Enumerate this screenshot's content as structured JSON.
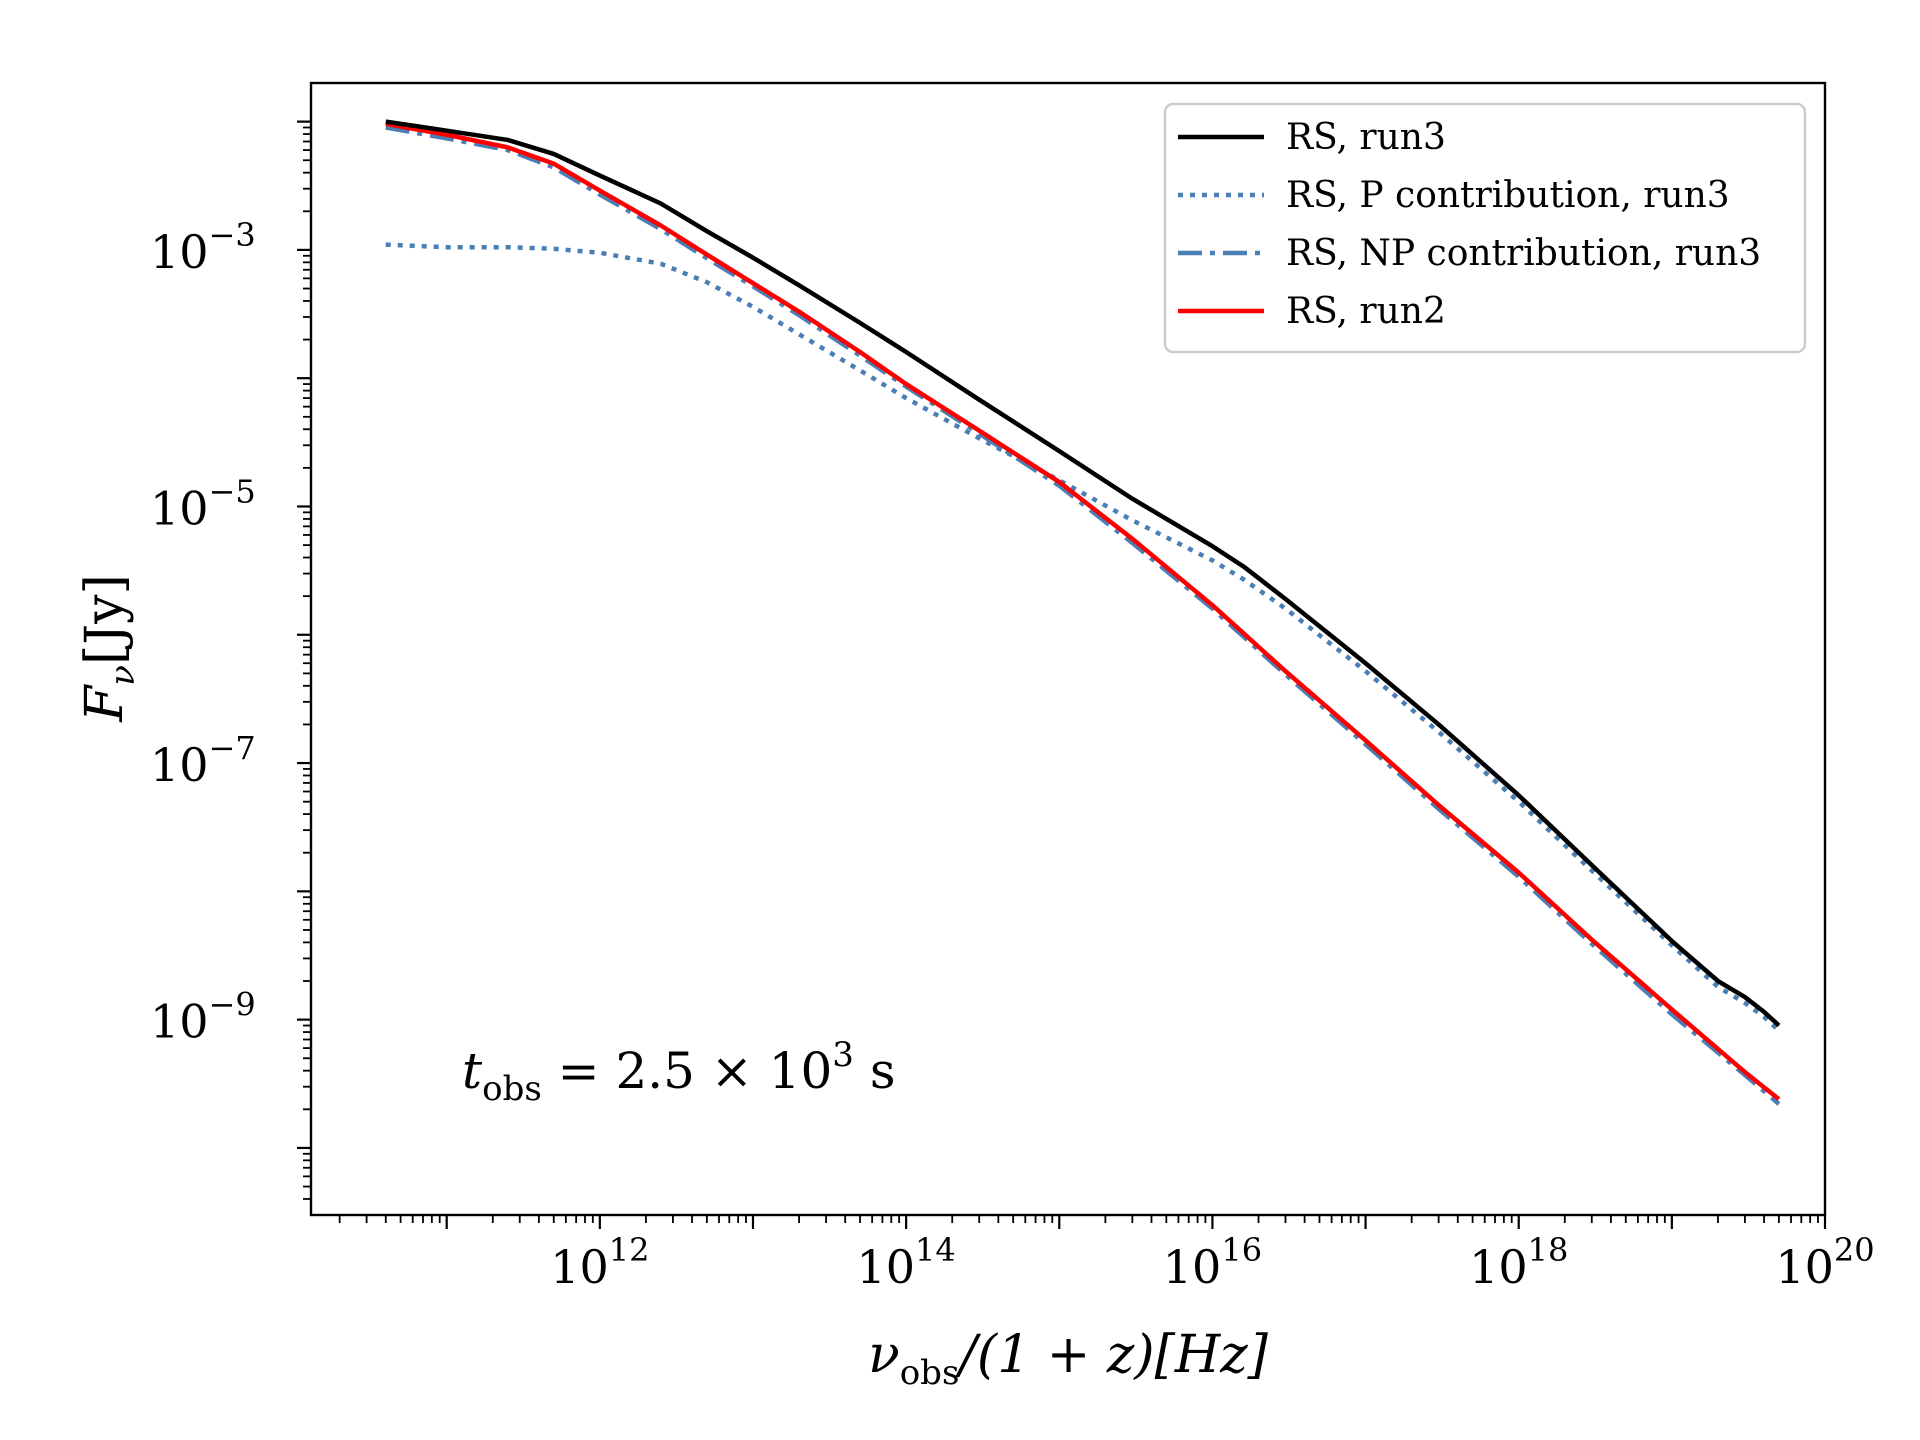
{
  "chart_data": {
    "type": "line",
    "xscale": "log",
    "yscale": "log",
    "xlim": [
      13000000000.0,
      1e+20
    ],
    "ylim": [
      3e-11,
      0.02
    ],
    "xticks": [
      {
        "value": 1000000000000.0,
        "base": "10",
        "exp": "12"
      },
      {
        "value": 100000000000000.0,
        "base": "10",
        "exp": "14"
      },
      {
        "value": 1e+16,
        "base": "10",
        "exp": "16"
      },
      {
        "value": 1e+18,
        "base": "10",
        "exp": "18"
      },
      {
        "value": 1e+20,
        "base": "10",
        "exp": "20"
      }
    ],
    "yticks": [
      {
        "value": 0.001,
        "base": "10",
        "exp": "−3"
      },
      {
        "value": 1e-05,
        "base": "10",
        "exp": "−5"
      },
      {
        "value": 1e-07,
        "base": "10",
        "exp": "−7"
      },
      {
        "value": 1e-09,
        "base": "10",
        "exp": "−9"
      }
    ],
    "xlabel": {
      "nu": "ν",
      "sub": "obs",
      "rest": "/(1 + z)[Hz]"
    },
    "ylabel": {
      "main": "F",
      "sub": "ν",
      "rest": "[Jy]"
    },
    "annotation": {
      "t": "t",
      "sub": "obs",
      "mid": " = 2.5 × 10",
      "exp": "3",
      "end": " s"
    },
    "legend_position": "top-right",
    "series": [
      {
        "name": "RS, run3",
        "color": "#000000",
        "style": "solid",
        "x": [
          40000000000.0,
          100000000000.0,
          250000000000.0,
          500000000000.0,
          1000000000000.0,
          2500000000000.0,
          5000000000000.0,
          10000000000000.0,
          20000000000000.0,
          50000000000000.0,
          100000000000000.0,
          300000000000000.0,
          1000000000000000.0,
          3000000000000000.0,
          1e+16,
          1.6e+16,
          3e+16,
          1e+17,
          3e+17,
          1e+18,
          3e+18,
          1e+19,
          2e+19,
          3e+19,
          4e+19,
          5e+19
        ],
        "y": [
          0.01,
          0.0085,
          0.0072,
          0.0056,
          0.0038,
          0.0023,
          0.0014,
          0.00087,
          0.00053,
          0.00027,
          0.00016,
          6.8e-05,
          2.7e-05,
          1.15e-05,
          4.9e-06,
          3.4e-06,
          1.9e-06,
          6e-07,
          2e-07,
          5.6e-08,
          1.6e-08,
          4.1e-09,
          2e-09,
          1.5e-09,
          1.15e-09,
          9e-10
        ]
      },
      {
        "name": "RS, P contribution, run3",
        "color": "#4a7fb5",
        "style": "dotted",
        "x": [
          40000000000.0,
          100000000000.0,
          250000000000.0,
          500000000000.0,
          1000000000000.0,
          2500000000000.0,
          5000000000000.0,
          10000000000000.0,
          20000000000000.0,
          50000000000000.0,
          100000000000000.0,
          300000000000000.0,
          1000000000000000.0,
          3000000000000000.0,
          1e+16,
          1.6e+16,
          3e+16,
          1e+17,
          3e+17,
          1e+18,
          3e+18,
          1e+19,
          2e+19,
          3e+19,
          4e+19,
          5e+19
        ],
        "y": [
          0.0011,
          0.00105,
          0.00105,
          0.00102,
          0.00095,
          0.00078,
          0.00056,
          0.00036,
          0.00022,
          0.000115,
          7e-05,
          3.4e-05,
          1.6e-05,
          7.8e-06,
          3.8e-06,
          2.7e-06,
          1.6e-06,
          5.2e-07,
          1.75e-07,
          5e-08,
          1.45e-08,
          3.8e-09,
          1.8e-09,
          1.35e-09,
          1.05e-09,
          8.2e-10
        ]
      },
      {
        "name": "RS, NP contribution, run3",
        "color": "#4a7fb5",
        "style": "dashdot",
        "x": [
          40000000000.0,
          100000000000.0,
          250000000000.0,
          500000000000.0,
          1000000000000.0,
          2500000000000.0,
          5000000000000.0,
          10000000000000.0,
          20000000000000.0,
          50000000000000.0,
          100000000000000.0,
          300000000000000.0,
          1000000000000000.0,
          3000000000000000.0,
          1e+16,
          3e+16,
          1e+17,
          3e+17,
          1e+18,
          3e+18,
          1e+19,
          3e+19,
          5e+19
        ],
        "y": [
          0.009,
          0.0074,
          0.006,
          0.0044,
          0.0027,
          0.00145,
          0.00086,
          0.00052,
          0.00031,
          0.00015,
          8.6e-05,
          3.7e-05,
          1.45e-05,
          5.2e-06,
          1.6e-06,
          4.9e-07,
          1.4e-07,
          4.4e-08,
          1.3e-08,
          3.9e-09,
          1.1e-09,
          3.7e-10,
          2.2e-10
        ]
      },
      {
        "name": "RS, run2",
        "color": "#ff0000",
        "style": "solid",
        "x": [
          40000000000.0,
          100000000000.0,
          250000000000.0,
          500000000000.0,
          1000000000000.0,
          2500000000000.0,
          5000000000000.0,
          10000000000000.0,
          20000000000000.0,
          50000000000000.0,
          100000000000000.0,
          300000000000000.0,
          1000000000000000.0,
          3000000000000000.0,
          1e+16,
          3e+16,
          1e+17,
          3e+17,
          1e+18,
          3e+18,
          1e+19,
          3e+19,
          5e+19
        ],
        "y": [
          0.0096,
          0.0079,
          0.0063,
          0.0047,
          0.0029,
          0.00155,
          0.00092,
          0.00055,
          0.00033,
          0.00016,
          9e-05,
          3.9e-05,
          1.55e-05,
          5.6e-06,
          1.7e-06,
          5.2e-07,
          1.5e-07,
          4.7e-08,
          1.4e-08,
          4.2e-09,
          1.2e-09,
          3.9e-10,
          2.4e-10
        ]
      }
    ]
  }
}
